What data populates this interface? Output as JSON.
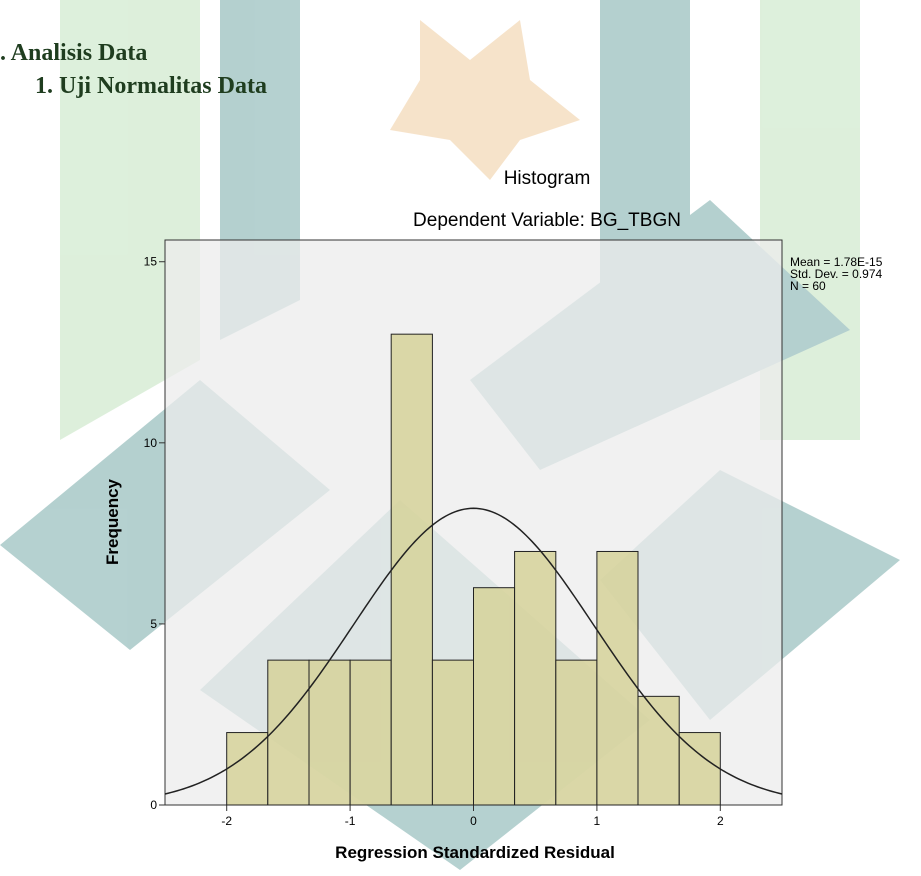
{
  "document": {
    "section": ". Analisis Data",
    "subsection": "1.  Uji Normalitas Data"
  },
  "chart_data": {
    "type": "histogram",
    "title": "Histogram",
    "subtitle": "Dependent Variable: BG_TBGN",
    "x_label": "Regression Standardized Residual",
    "y_label": "Frequency",
    "bins": [
      -2,
      -1.667,
      -1.333,
      -1,
      -0.667,
      -0.333,
      0,
      0.333,
      0.667,
      1,
      1.333,
      1.667,
      2
    ],
    "values": [
      2,
      4,
      4,
      4,
      13,
      4,
      6,
      7,
      4,
      7,
      3,
      2
    ],
    "color": "#d6d29a",
    "xlim": [
      -2.5,
      2.5
    ],
    "xticks": [
      -2,
      -1,
      0,
      1,
      2
    ],
    "ylim": [
      0,
      15.6
    ],
    "yticks": [
      0,
      5,
      10,
      15
    ],
    "stats": [
      {
        "value": 1.78e-15,
        "label": "Mean = 1.78E-15"
      },
      {
        "value": 0.974,
        "label": "Std. Dev. = 0.974"
      },
      {
        "value": 60,
        "label": "N = 60"
      }
    ],
    "normal_curve": true
  }
}
